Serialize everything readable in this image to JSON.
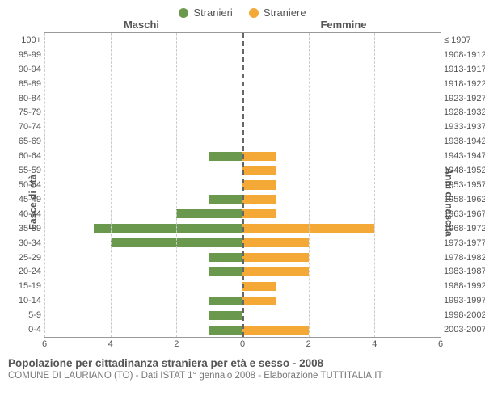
{
  "legend": {
    "male": {
      "label": "Stranieri",
      "color": "#6a994e"
    },
    "female": {
      "label": "Straniere",
      "color": "#f4a836"
    }
  },
  "column_headers": {
    "left": "Maschi",
    "right": "Femmine"
  },
  "y_axis_left": "Fasce di età",
  "y_axis_right": "Anni di nascita",
  "chart": {
    "type": "population-pyramid",
    "x_max": 6,
    "x_ticks": [
      6,
      4,
      2,
      0,
      2,
      4,
      6
    ],
    "grid_color": "#cccccc",
    "center_color": "#666666",
    "male_color": "#6a994e",
    "female_color": "#f4a836",
    "background_color": "#ffffff",
    "rows": [
      {
        "age": "100+",
        "birth": "≤ 1907",
        "m": 0,
        "f": 0
      },
      {
        "age": "95-99",
        "birth": "1908-1912",
        "m": 0,
        "f": 0
      },
      {
        "age": "90-94",
        "birth": "1913-1917",
        "m": 0,
        "f": 0
      },
      {
        "age": "85-89",
        "birth": "1918-1922",
        "m": 0,
        "f": 0
      },
      {
        "age": "80-84",
        "birth": "1923-1927",
        "m": 0,
        "f": 0
      },
      {
        "age": "75-79",
        "birth": "1928-1932",
        "m": 0,
        "f": 0
      },
      {
        "age": "70-74",
        "birth": "1933-1937",
        "m": 0,
        "f": 0
      },
      {
        "age": "65-69",
        "birth": "1938-1942",
        "m": 0,
        "f": 0
      },
      {
        "age": "60-64",
        "birth": "1943-1947",
        "m": 1,
        "f": 1
      },
      {
        "age": "55-59",
        "birth": "1948-1952",
        "m": 0,
        "f": 1
      },
      {
        "age": "50-54",
        "birth": "1953-1957",
        "m": 0,
        "f": 1
      },
      {
        "age": "45-49",
        "birth": "1958-1962",
        "m": 1,
        "f": 1
      },
      {
        "age": "40-44",
        "birth": "1963-1967",
        "m": 2,
        "f": 1
      },
      {
        "age": "35-39",
        "birth": "1968-1972",
        "m": 4.5,
        "f": 4
      },
      {
        "age": "30-34",
        "birth": "1973-1977",
        "m": 4,
        "f": 2
      },
      {
        "age": "25-29",
        "birth": "1978-1982",
        "m": 1,
        "f": 2
      },
      {
        "age": "20-24",
        "birth": "1983-1987",
        "m": 1,
        "f": 2
      },
      {
        "age": "15-19",
        "birth": "1988-1992",
        "m": 0,
        "f": 1
      },
      {
        "age": "10-14",
        "birth": "1993-1997",
        "m": 1,
        "f": 1
      },
      {
        "age": "5-9",
        "birth": "1998-2002",
        "m": 1,
        "f": 0
      },
      {
        "age": "0-4",
        "birth": "2003-2007",
        "m": 1,
        "f": 2
      }
    ]
  },
  "caption": {
    "title": "Popolazione per cittadinanza straniera per età e sesso - 2008",
    "subtitle": "COMUNE DI LAURIANO (TO) - Dati ISTAT 1° gennaio 2008 - Elaborazione TUTTITALIA.IT"
  }
}
